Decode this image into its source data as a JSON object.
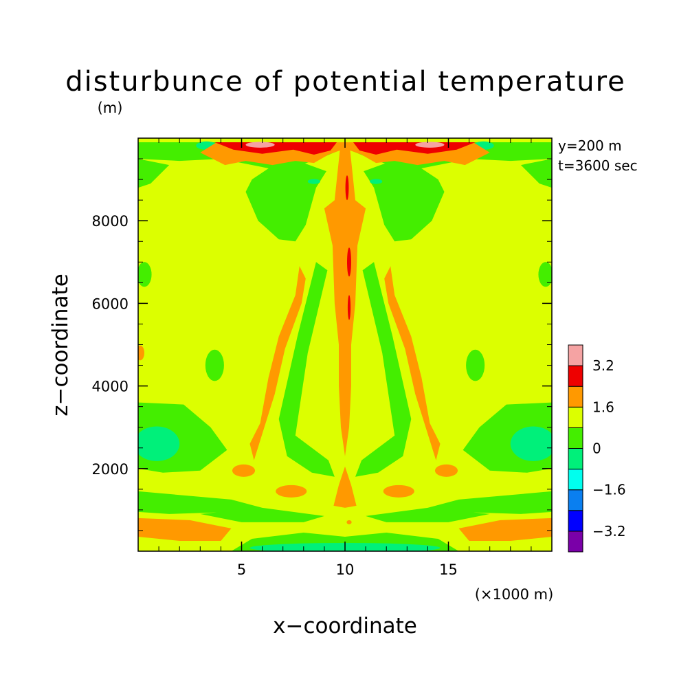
{
  "chart_data": {
    "type": "heatmap",
    "title": "disturbunce of potential temperature",
    "xlabel": "x−coordinate",
    "ylabel": "z−coordinate",
    "x_unit": "(×1000 m)",
    "y_unit": "(m)",
    "annotations": [
      "y=200 m",
      "t=3600 sec"
    ],
    "xlim": [
      0,
      20
    ],
    "ylim": [
      0,
      10000
    ],
    "x_ticks": [
      5,
      10,
      15
    ],
    "y_ticks": [
      2000,
      4000,
      6000,
      8000
    ],
    "x_tick_labels": [
      "5",
      "10",
      "15"
    ],
    "y_tick_labels": [
      "2000",
      "4000",
      "6000",
      "8000"
    ],
    "colorbar": {
      "levels": [
        -4.0,
        -3.2,
        -2.4,
        -1.6,
        -0.8,
        0,
        0.8,
        1.6,
        2.4,
        3.2,
        4.0
      ],
      "tick_values": [
        -3.2,
        -1.6,
        0,
        1.6,
        3.2
      ],
      "tick_labels": [
        "−3.2",
        "−1.6",
        "0",
        "1.6",
        "3.2"
      ],
      "colors": [
        "#7a00a8",
        "#0000ff",
        "#0a7ff0",
        "#00ffee",
        "#00f07a",
        "#44ee00",
        "#dcff00",
        "#ff9900",
        "#ee0000",
        "#f5a3a3"
      ]
    },
    "background_band": {
      "range": [
        0.8,
        1.6
      ],
      "color": "#dcff00"
    },
    "regions": [
      {
        "band": [
          0,
          0.8
        ],
        "shape": "poly",
        "pts": [
          [
            0,
            9.9
          ],
          [
            20,
            9.9
          ],
          [
            20,
            9.5
          ],
          [
            18,
            9.45
          ],
          [
            16,
            9.5
          ],
          [
            13,
            9.2
          ],
          [
            11,
            9.55
          ],
          [
            10.3,
            9.7
          ],
          [
            9.7,
            9.7
          ],
          [
            9,
            9.55
          ],
          [
            7,
            9.2
          ],
          [
            4,
            9.5
          ],
          [
            2,
            9.45
          ],
          [
            0,
            9.5
          ]
        ]
      },
      {
        "band": [
          0,
          0.8
        ],
        "shape": "poly",
        "pts": [
          [
            0,
            9.5
          ],
          [
            1.5,
            9.35
          ],
          [
            0.6,
            8.9
          ],
          [
            0,
            8.8
          ]
        ]
      },
      {
        "band": [
          0,
          0.8
        ],
        "shape": "poly",
        "pts": [
          [
            20,
            9.5
          ],
          [
            18.5,
            9.35
          ],
          [
            19.4,
            8.9
          ],
          [
            20,
            8.8
          ]
        ]
      },
      {
        "band": [
          0,
          0.8
        ],
        "shape": "poly",
        "pts": [
          [
            6.4,
            9.3
          ],
          [
            5.5,
            9.0
          ],
          [
            5.2,
            8.7
          ],
          [
            5.8,
            8.0
          ],
          [
            6.8,
            7.55
          ],
          [
            7.6,
            7.5
          ],
          [
            8.1,
            7.9
          ],
          [
            8.6,
            8.8
          ],
          [
            9.1,
            9.2
          ],
          [
            8.0,
            9.4
          ]
        ]
      },
      {
        "band": [
          0,
          0.8
        ],
        "shape": "poly",
        "pts": [
          [
            13.6,
            9.3
          ],
          [
            14.5,
            9.0
          ],
          [
            14.8,
            8.7
          ],
          [
            14.2,
            8.0
          ],
          [
            13.2,
            7.55
          ],
          [
            12.4,
            7.5
          ],
          [
            11.9,
            7.9
          ],
          [
            11.4,
            8.8
          ],
          [
            10.9,
            9.2
          ],
          [
            12.0,
            9.4
          ]
        ]
      },
      {
        "band": [
          0,
          0.8
        ],
        "shape": "poly",
        "pts": [
          [
            7.7,
            5.2
          ],
          [
            8.6,
            7.0
          ],
          [
            9.15,
            6.8
          ],
          [
            8.2,
            4.8
          ],
          [
            7.6,
            2.8
          ],
          [
            9.2,
            2.2
          ],
          [
            9.5,
            1.8
          ],
          [
            8.4,
            1.9
          ],
          [
            7.2,
            2.3
          ],
          [
            6.8,
            3.2
          ]
        ]
      },
      {
        "band": [
          0,
          0.8
        ],
        "shape": "poly",
        "pts": [
          [
            12.3,
            5.2
          ],
          [
            11.4,
            7.0
          ],
          [
            10.85,
            6.8
          ],
          [
            11.8,
            4.8
          ],
          [
            12.4,
            2.8
          ],
          [
            10.8,
            2.2
          ],
          [
            10.5,
            1.8
          ],
          [
            11.6,
            1.9
          ],
          [
            12.8,
            2.3
          ],
          [
            13.2,
            3.2
          ]
        ]
      },
      {
        "band": [
          0,
          0.8
        ],
        "shape": "poly",
        "pts": [
          [
            0,
            3.6
          ],
          [
            2.2,
            3.55
          ],
          [
            3.5,
            3.0
          ],
          [
            4.3,
            2.45
          ],
          [
            3.0,
            1.95
          ],
          [
            1.2,
            1.9
          ],
          [
            0,
            2.0
          ]
        ]
      },
      {
        "band": [
          0,
          0.8
        ],
        "shape": "poly",
        "pts": [
          [
            20,
            3.6
          ],
          [
            17.8,
            3.55
          ],
          [
            16.5,
            3.0
          ],
          [
            15.7,
            2.45
          ],
          [
            17.0,
            1.95
          ],
          [
            18.8,
            1.9
          ],
          [
            20,
            2.0
          ]
        ]
      },
      {
        "band": [
          0,
          0.8
        ],
        "shape": "poly",
        "pts": [
          [
            0,
            1.45
          ],
          [
            4.5,
            1.25
          ],
          [
            6.0,
            1.05
          ],
          [
            4.5,
            0.95
          ],
          [
            1.5,
            0.9
          ],
          [
            0,
            0.95
          ]
        ]
      },
      {
        "band": [
          0,
          0.8
        ],
        "shape": "poly",
        "pts": [
          [
            20,
            1.45
          ],
          [
            15.5,
            1.25
          ],
          [
            14.0,
            1.05
          ],
          [
            15.5,
            0.95
          ],
          [
            18.5,
            0.9
          ],
          [
            20,
            0.95
          ]
        ]
      },
      {
        "band": [
          0,
          0.8
        ],
        "shape": "poly",
        "pts": [
          [
            3.0,
            0.9
          ],
          [
            6.0,
            1.05
          ],
          [
            9.0,
            0.85
          ],
          [
            8.0,
            0.7
          ],
          [
            5.0,
            0.7
          ]
        ]
      },
      {
        "band": [
          0,
          0.8
        ],
        "shape": "poly",
        "pts": [
          [
            17.0,
            0.9
          ],
          [
            14.0,
            1.05
          ],
          [
            11.0,
            0.85
          ],
          [
            12.0,
            0.7
          ],
          [
            15.0,
            0.7
          ]
        ]
      },
      {
        "band": [
          0,
          0.8
        ],
        "shape": "poly",
        "pts": [
          [
            4.5,
            0.0
          ],
          [
            15.5,
            0.0
          ],
          [
            14.5,
            0.3
          ],
          [
            12.0,
            0.45
          ],
          [
            10.0,
            0.35
          ],
          [
            8.0,
            0.45
          ],
          [
            5.5,
            0.3
          ]
        ]
      },
      {
        "band": [
          0,
          0.8
        ],
        "shape": "ellipse",
        "cx": 0.3,
        "cy": 6.7,
        "rx": 0.35,
        "ry": 0.3
      },
      {
        "band": [
          0,
          0.8
        ],
        "shape": "ellipse",
        "cx": 19.7,
        "cy": 6.7,
        "rx": 0.35,
        "ry": 0.3
      },
      {
        "band": [
          0,
          0.8
        ],
        "shape": "ellipse",
        "cx": 3.7,
        "cy": 4.5,
        "rx": 0.45,
        "ry": 0.38
      },
      {
        "band": [
          0,
          0.8
        ],
        "shape": "ellipse",
        "cx": 16.3,
        "cy": 4.5,
        "rx": 0.45,
        "ry": 0.38
      },
      {
        "band": [
          -0.8,
          0
        ],
        "shape": "ellipse",
        "cx": 0.9,
        "cy": 2.6,
        "rx": 1.1,
        "ry": 0.42
      },
      {
        "band": [
          -0.8,
          0
        ],
        "shape": "ellipse",
        "cx": 19.1,
        "cy": 2.6,
        "rx": 1.1,
        "ry": 0.42
      },
      {
        "band": [
          -0.8,
          0
        ],
        "shape": "ellipse",
        "cx": 10.0,
        "cy": 0.08,
        "rx": 4.6,
        "ry": 0.12
      },
      {
        "band": [
          -0.8,
          0
        ],
        "shape": "ellipse",
        "cx": 3.3,
        "cy": 9.82,
        "rx": 0.5,
        "ry": 0.1
      },
      {
        "band": [
          -0.8,
          0
        ],
        "shape": "ellipse",
        "cx": 16.7,
        "cy": 9.82,
        "rx": 0.5,
        "ry": 0.1
      },
      {
        "band": [
          -0.8,
          0
        ],
        "shape": "ellipse",
        "cx": 8.5,
        "cy": 8.95,
        "rx": 0.3,
        "ry": 0.06
      },
      {
        "band": [
          -0.8,
          0
        ],
        "shape": "ellipse",
        "cx": 11.5,
        "cy": 8.95,
        "rx": 0.3,
        "ry": 0.06
      },
      {
        "band": [
          1.6,
          2.4
        ],
        "shape": "poly",
        "pts": [
          [
            3.8,
            9.9
          ],
          [
            16.2,
            9.9
          ],
          [
            17.0,
            9.65
          ],
          [
            15.8,
            9.35
          ],
          [
            14.8,
            9.45
          ],
          [
            13.5,
            9.35
          ],
          [
            12.4,
            9.45
          ],
          [
            11.5,
            9.4
          ],
          [
            10.8,
            9.6
          ],
          [
            10.25,
            9.7
          ],
          [
            10.5,
            8.5
          ],
          [
            11.0,
            8.3
          ],
          [
            10.6,
            7.4
          ],
          [
            10.5,
            6.0
          ],
          [
            10.3,
            5.0
          ],
          [
            10.3,
            4.0
          ],
          [
            10.2,
            3.0
          ],
          [
            10.0,
            2.3
          ],
          [
            9.8,
            3.0
          ],
          [
            9.7,
            4.0
          ],
          [
            9.7,
            5.0
          ],
          [
            9.5,
            6.0
          ],
          [
            9.4,
            7.4
          ],
          [
            9.0,
            8.3
          ],
          [
            9.5,
            8.5
          ],
          [
            9.75,
            9.7
          ],
          [
            9.2,
            9.6
          ],
          [
            8.5,
            9.4
          ],
          [
            7.6,
            9.45
          ],
          [
            6.5,
            9.35
          ],
          [
            5.2,
            9.45
          ],
          [
            4.2,
            9.35
          ],
          [
            3.0,
            9.65
          ]
        ]
      },
      {
        "band": [
          1.6,
          2.4
        ],
        "shape": "poly",
        "pts": [
          [
            7.8,
            6.9
          ],
          [
            7.6,
            6.2
          ],
          [
            6.8,
            5.2
          ],
          [
            6.3,
            4.2
          ],
          [
            5.9,
            3.1
          ],
          [
            5.4,
            2.6
          ],
          [
            5.6,
            2.2
          ],
          [
            6.1,
            3.0
          ],
          [
            6.6,
            3.8
          ],
          [
            7.1,
            4.9
          ],
          [
            7.9,
            6.0
          ],
          [
            8.1,
            6.6
          ]
        ]
      },
      {
        "band": [
          1.6,
          2.4
        ],
        "shape": "poly",
        "pts": [
          [
            12.2,
            6.9
          ],
          [
            12.4,
            6.2
          ],
          [
            13.2,
            5.2
          ],
          [
            13.7,
            4.2
          ],
          [
            14.1,
            3.1
          ],
          [
            14.6,
            2.6
          ],
          [
            14.4,
            2.2
          ],
          [
            13.9,
            3.0
          ],
          [
            13.4,
            3.8
          ],
          [
            12.9,
            4.9
          ],
          [
            12.1,
            6.0
          ],
          [
            11.9,
            6.6
          ]
        ]
      },
      {
        "band": [
          1.6,
          2.4
        ],
        "shape": "ellipse",
        "cx": 5.1,
        "cy": 1.95,
        "rx": 0.55,
        "ry": 0.15
      },
      {
        "band": [
          1.6,
          2.4
        ],
        "shape": "ellipse",
        "cx": 14.9,
        "cy": 1.95,
        "rx": 0.55,
        "ry": 0.15
      },
      {
        "band": [
          1.6,
          2.4
        ],
        "shape": "ellipse",
        "cx": 7.4,
        "cy": 1.45,
        "rx": 0.75,
        "ry": 0.15
      },
      {
        "band": [
          1.6,
          2.4
        ],
        "shape": "ellipse",
        "cx": 12.6,
        "cy": 1.45,
        "rx": 0.75,
        "ry": 0.15
      },
      {
        "band": [
          1.6,
          2.4
        ],
        "shape": "poly",
        "pts": [
          [
            10.0,
            2.05
          ],
          [
            10.3,
            1.6
          ],
          [
            10.55,
            1.1
          ],
          [
            10.0,
            1.05
          ],
          [
            9.45,
            1.1
          ],
          [
            9.7,
            1.6
          ]
        ]
      },
      {
        "band": [
          1.6,
          2.4
        ],
        "shape": "poly",
        "pts": [
          [
            0,
            0.8
          ],
          [
            2.5,
            0.75
          ],
          [
            4.5,
            0.55
          ],
          [
            4.0,
            0.25
          ],
          [
            2.0,
            0.25
          ],
          [
            0,
            0.35
          ]
        ]
      },
      {
        "band": [
          1.6,
          2.4
        ],
        "shape": "poly",
        "pts": [
          [
            20,
            0.8
          ],
          [
            17.5,
            0.75
          ],
          [
            15.5,
            0.55
          ],
          [
            16.0,
            0.25
          ],
          [
            18.0,
            0.25
          ],
          [
            20,
            0.35
          ]
        ]
      },
      {
        "band": [
          1.6,
          2.4
        ],
        "shape": "ellipse",
        "cx": 0.1,
        "cy": 4.8,
        "rx": 0.2,
        "ry": 0.18
      },
      {
        "band": [
          1.6,
          2.4
        ],
        "shape": "ellipse",
        "cx": 10.2,
        "cy": 0.7,
        "rx": 0.12,
        "ry": 0.05
      },
      {
        "band": [
          2.4,
          3.2
        ],
        "shape": "poly",
        "pts": [
          [
            3.7,
            9.9
          ],
          [
            9.6,
            9.9
          ],
          [
            9.3,
            9.7
          ],
          [
            8.5,
            9.6
          ],
          [
            7.5,
            9.72
          ],
          [
            6.0,
            9.62
          ],
          [
            4.6,
            9.72
          ]
        ]
      },
      {
        "band": [
          2.4,
          3.2
        ],
        "shape": "poly",
        "pts": [
          [
            16.3,
            9.9
          ],
          [
            10.4,
            9.9
          ],
          [
            10.7,
            9.7
          ],
          [
            11.5,
            9.6
          ],
          [
            12.5,
            9.72
          ],
          [
            14.0,
            9.62
          ],
          [
            15.4,
            9.72
          ]
        ]
      },
      {
        "band": [
          2.4,
          3.2
        ],
        "shape": "ellipse",
        "cx": 10.1,
        "cy": 8.8,
        "rx": 0.08,
        "ry": 0.3
      },
      {
        "band": [
          2.4,
          3.2
        ],
        "shape": "ellipse",
        "cx": 10.2,
        "cy": 7.0,
        "rx": 0.1,
        "ry": 0.35
      },
      {
        "band": [
          2.4,
          3.2
        ],
        "shape": "ellipse",
        "cx": 10.2,
        "cy": 5.9,
        "rx": 0.07,
        "ry": 0.3
      },
      {
        "band": [
          3.2,
          4.0
        ],
        "shape": "ellipse",
        "cx": 5.9,
        "cy": 9.84,
        "rx": 0.7,
        "ry": 0.07
      },
      {
        "band": [
          3.2,
          4.0
        ],
        "shape": "ellipse",
        "cx": 14.1,
        "cy": 9.84,
        "rx": 0.7,
        "ry": 0.07
      }
    ]
  }
}
